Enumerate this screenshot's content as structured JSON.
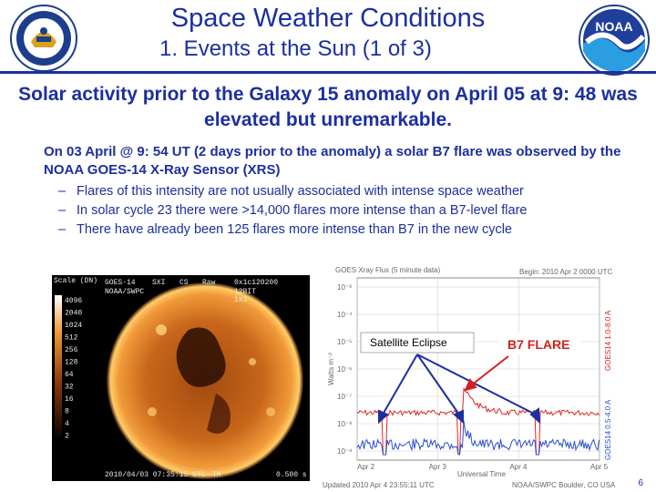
{
  "header": {
    "title": "Space Weather Conditions",
    "subtitle": "1. Events at the Sun (1 of 3)"
  },
  "lead_text": "Solar activity prior to the Galaxy 15 anomaly on April 05 at 9: 48 was elevated but unremarkable.",
  "paragraph": "On 03 April @ 9: 54 UT (2 days prior to the anomaly) a solar B7 flare was observed by the NOAA GOES-14 X-Ray Sensor (XRS)",
  "bullets": [
    "Flares of this intensity are not usually associated with intense space weather",
    "In solar cycle 23 there were >14,000 flares more intense than a B7-level flare",
    "There have already been 125 flares more intense than B7 in the new cycle"
  ],
  "sun_image": {
    "header_left": "GOES-14",
    "header_mid1": "SXI",
    "header_mid2": "CS",
    "header_mid3": "Raw",
    "header_right": "0x1c120200",
    "sub1": "NOAA/SWPC",
    "sub2": "12BIT",
    "sub3": "1x1",
    "scale_title": "Scale (DN)",
    "scale_values": [
      "4096",
      "2040",
      "1024",
      "512",
      "256",
      "128",
      "64",
      "32",
      "16",
      "8",
      "4",
      "2"
    ],
    "footer_time": "2010/04/03 07:35:15 UTC",
    "footer_tm": "TM",
    "footer_exposure": "0.500 s"
  },
  "xray_plot": {
    "title": "GOES Xray Flux (5 minute data)",
    "begin": "Begin: 2010 Apr 2 0000 UTC",
    "ylabel": "Watts m⁻²",
    "y_ticks": [
      "10⁻³",
      "10⁻⁴",
      "10⁻⁵",
      "10⁻⁶",
      "10⁻⁷",
      "10⁻⁸",
      "10⁻⁹"
    ],
    "x_ticks": [
      "Apr 2",
      "Apr 3",
      "Apr 4",
      "Apr 5"
    ],
    "xlabel": "Universal Time",
    "right_label_top": "GOES14 1.0-8.0 A",
    "right_label_bottom": "GOES14 0.5-4.0 A",
    "updated": "Updated 2010 Apr 4 23:55:11 UTC",
    "credit": "NOAA/SWPC Boulder, CO USA",
    "annotation_eclipse": "Satellite Eclipse",
    "annotation_flare": "B7 FLARE",
    "annotation_color": "#d42020"
  },
  "slide_number": "6"
}
